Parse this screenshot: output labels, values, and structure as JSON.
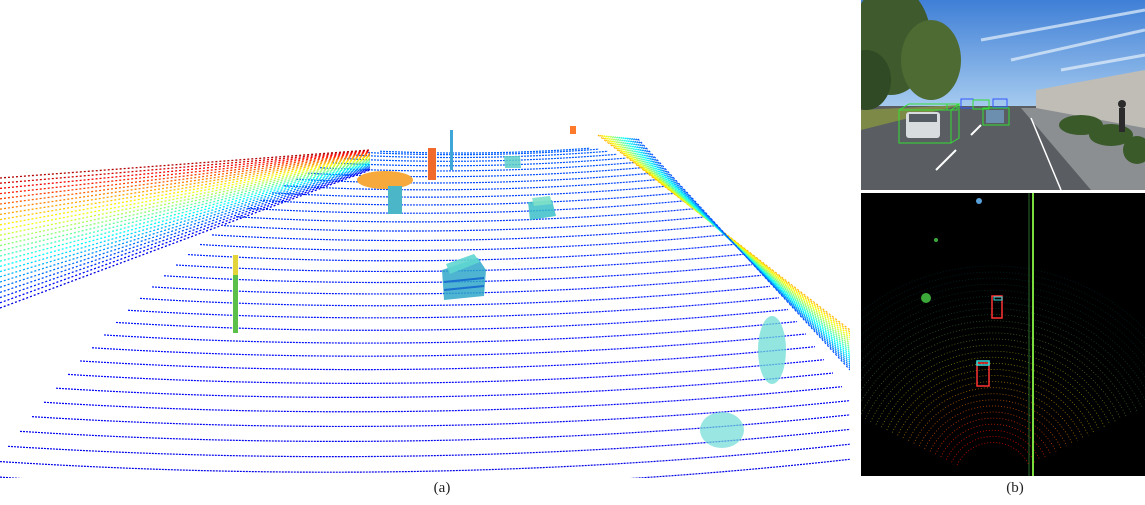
{
  "captions": {
    "a": "(a)",
    "b": "(b)"
  },
  "colors": {
    "box_green": "#33dd33",
    "box_blue": "#3355ff",
    "bev_box_red": "#ff3333",
    "bev_box_cyan": "#33dddd",
    "bev_background": "#000000",
    "figure_background": "#ffffff"
  }
}
